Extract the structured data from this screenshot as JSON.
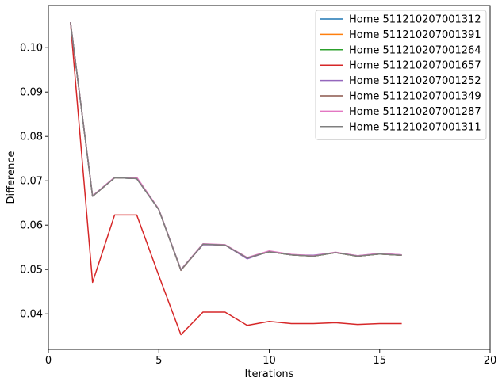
{
  "chart_data": {
    "type": "line",
    "title": "",
    "xlabel": "Iterations",
    "ylabel": "Difference",
    "xlim": [
      0,
      20
    ],
    "ylim": [
      0.032,
      0.1095
    ],
    "xticks": [
      0,
      5,
      10,
      15,
      20
    ],
    "yticks": [
      0.04,
      0.05,
      0.06,
      0.07,
      0.08,
      0.09,
      0.1
    ],
    "ytick_labels": [
      "0.04",
      "0.05",
      "0.06",
      "0.07",
      "0.08",
      "0.09",
      "0.10"
    ],
    "grid": false,
    "legend_position": "top-right",
    "x": [
      1,
      2,
      3,
      4,
      5,
      6,
      7,
      8,
      9,
      10,
      11,
      12,
      13,
      14,
      15,
      16
    ],
    "series": [
      {
        "name": "Home 511210207001312",
        "color": "#1f77b4",
        "values": [
          0.1057,
          0.0665,
          0.0707,
          0.0705,
          0.0635,
          0.0499,
          0.0557,
          0.0555,
          0.0526,
          0.054,
          0.0533,
          0.053,
          0.0538,
          0.053,
          0.0535,
          0.0532
        ]
      },
      {
        "name": "Home 511210207001391",
        "color": "#ff7f0e",
        "values": [
          0.1057,
          0.0665,
          0.0707,
          0.0706,
          0.0635,
          0.0499,
          0.0557,
          0.0555,
          0.0526,
          0.054,
          0.0533,
          0.053,
          0.0538,
          0.053,
          0.0535,
          0.0532
        ]
      },
      {
        "name": "Home 511210207001264",
        "color": "#2ca02c",
        "values": [
          0.1057,
          0.0665,
          0.0707,
          0.0705,
          0.0635,
          0.0499,
          0.0557,
          0.0555,
          0.0526,
          0.054,
          0.0533,
          0.053,
          0.0538,
          0.053,
          0.0535,
          0.0532
        ]
      },
      {
        "name": "Home 511210207001657",
        "color": "#d62728",
        "values": [
          0.1057,
          0.0471,
          0.0623,
          0.0623,
          0.0486,
          0.0353,
          0.0404,
          0.0404,
          0.0374,
          0.0383,
          0.0378,
          0.0378,
          0.038,
          0.0376,
          0.0378,
          0.0378
        ]
      },
      {
        "name": "Home 511210207001252",
        "color": "#9467bd",
        "values": [
          0.1057,
          0.0665,
          0.0707,
          0.0705,
          0.0635,
          0.0499,
          0.0556,
          0.0555,
          0.0524,
          0.0541,
          0.0533,
          0.0532,
          0.0538,
          0.0531,
          0.0536,
          0.0533
        ]
      },
      {
        "name": "Home 511210207001349",
        "color": "#8c564b",
        "values": [
          0.1057,
          0.0665,
          0.0707,
          0.0705,
          0.0635,
          0.0498,
          0.0557,
          0.0555,
          0.0526,
          0.054,
          0.0533,
          0.053,
          0.0538,
          0.053,
          0.0535,
          0.0532
        ]
      },
      {
        "name": "Home 511210207001287",
        "color": "#e377c2",
        "values": [
          0.1057,
          0.0666,
          0.0708,
          0.0708,
          0.0636,
          0.05,
          0.0558,
          0.0556,
          0.0527,
          0.0542,
          0.0534,
          0.0531,
          0.0539,
          0.0531,
          0.0536,
          0.0533
        ]
      },
      {
        "name": "Home 511210207001311",
        "color": "#7f7f7f",
        "values": [
          0.1057,
          0.0665,
          0.0707,
          0.0705,
          0.0635,
          0.0499,
          0.0557,
          0.0555,
          0.0526,
          0.054,
          0.0533,
          0.053,
          0.0538,
          0.053,
          0.0535,
          0.0532
        ]
      }
    ]
  }
}
